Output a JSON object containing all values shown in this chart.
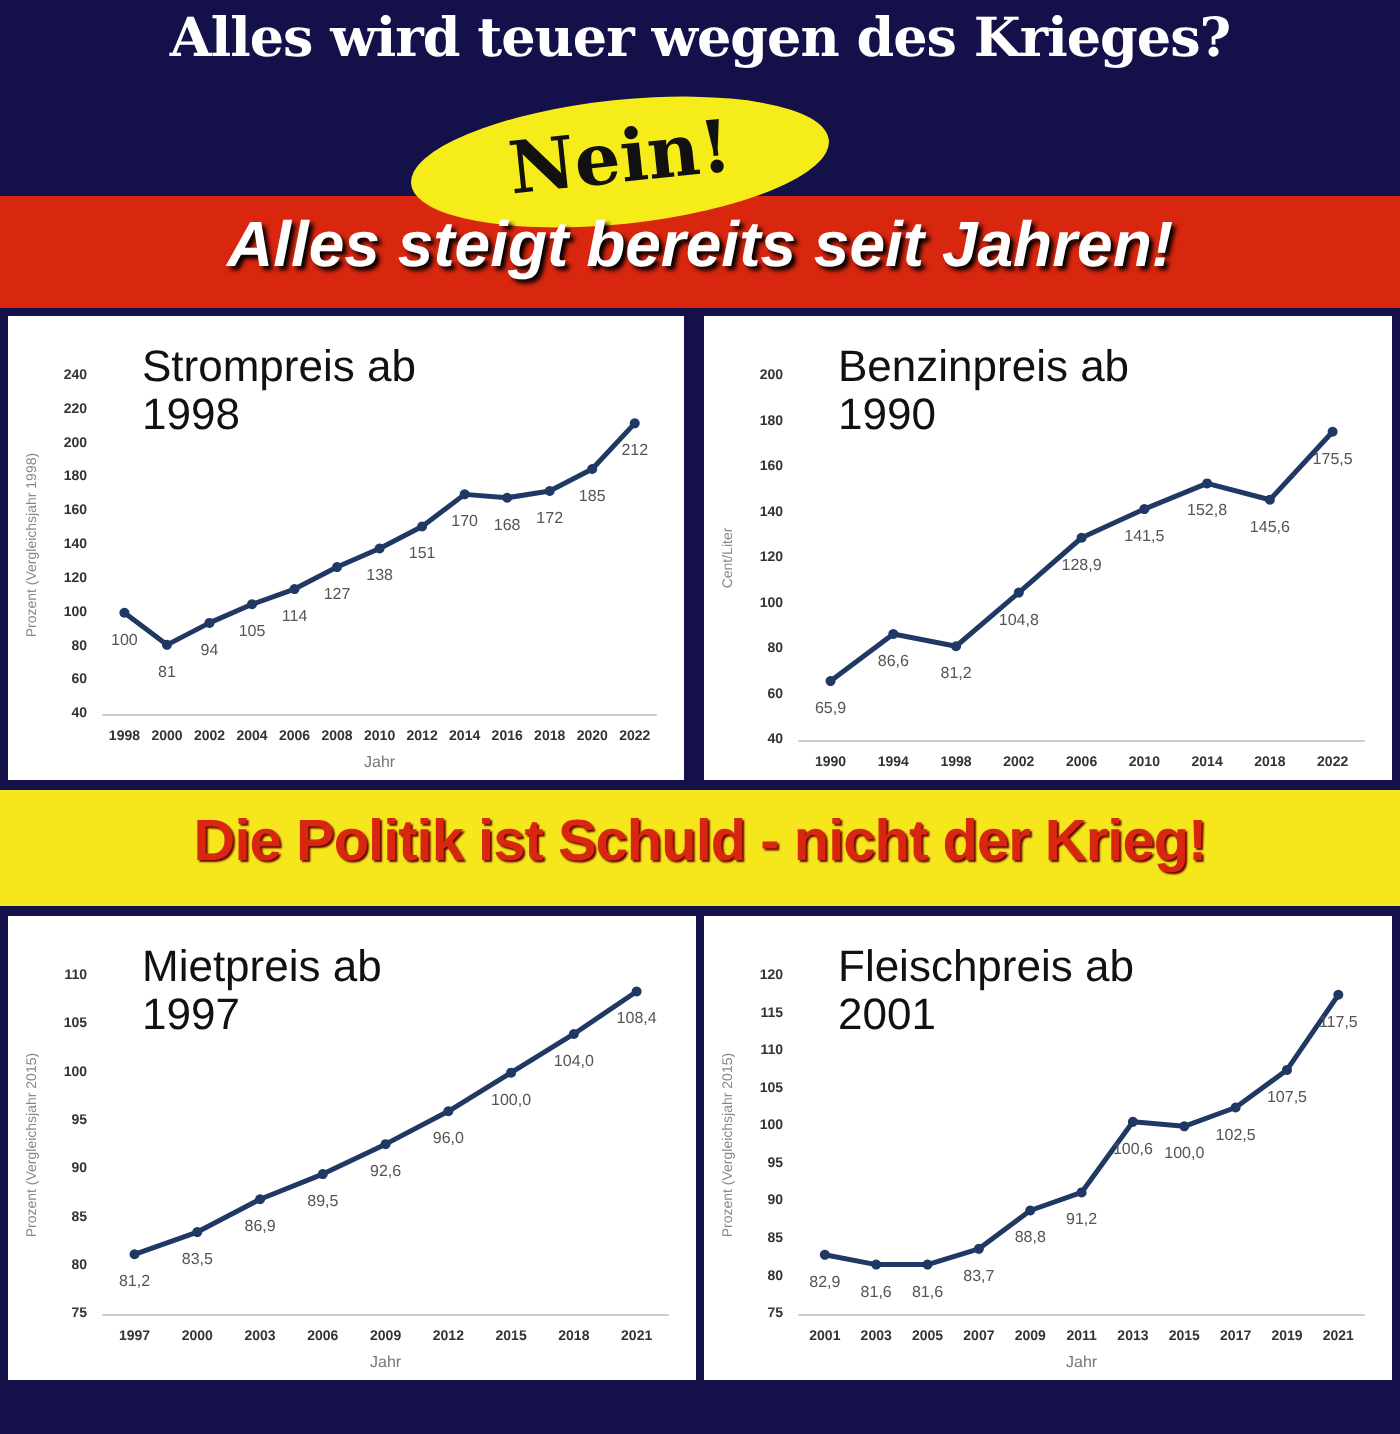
{
  "chart_data": [
    {
      "type": "line",
      "title": "Strompreis ab 1998",
      "xlabel": "Jahr",
      "ylabel": "Prozent (Vergleichsjahr 1998)",
      "annotations": [
        "Alles wird teuer wegen des Krieges?",
        "Nein!",
        "Alles steigt bereits seit Jahren!",
        "Die Politik ist Schuld - nicht der Krieg!"
      ],
      "categories": [
        "1998",
        "2000",
        "2002",
        "2004",
        "2006",
        "2008",
        "2010",
        "2012",
        "2014",
        "2016",
        "2018",
        "2020",
        "2022"
      ],
      "ylim": [
        40,
        240
      ],
      "yticks": [
        40,
        60,
        80,
        100,
        120,
        140,
        160,
        180,
        200,
        220,
        240
      ],
      "grid": false,
      "marker": "circle",
      "line_style": "solid",
      "series": [
        {
          "color": "#1f3864",
          "values": [
            100,
            81,
            94,
            105,
            114,
            127,
            138,
            151,
            170,
            168,
            172,
            185,
            212
          ],
          "value_labels": [
            "100",
            "81",
            "94",
            "105",
            "114",
            "127",
            "138",
            "151",
            "170",
            "168",
            "172",
            "185",
            "212"
          ]
        }
      ]
    },
    {
      "type": "line",
      "title": "Benzinpreis ab 1990",
      "ylabel": "Cent/Liter",
      "categories": [
        "1990",
        "1994",
        "1998",
        "2002",
        "2006",
        "2010",
        "2014",
        "2018",
        "2022"
      ],
      "ylim": [
        40,
        200
      ],
      "yticks": [
        40,
        60,
        80,
        100,
        120,
        140,
        160,
        180,
        200
      ],
      "grid": false,
      "marker": "circle",
      "line_style": "solid",
      "series": [
        {
          "color": "#1f3864",
          "values": [
            65.9,
            86.6,
            81.2,
            104.8,
            128.9,
            141.5,
            152.8,
            145.6,
            175.5
          ],
          "value_labels": [
            "65,9",
            "86,6",
            "81,2",
            "104,8",
            "128,9",
            "141,5",
            "152,8",
            "145,6",
            "175,5"
          ]
        }
      ]
    },
    {
      "type": "line",
      "title": "Mietpreis ab 1997",
      "xlabel": "Jahr",
      "ylabel": "Prozent (Vergleichsjahr 2015)",
      "categories": [
        "1997",
        "2000",
        "2003",
        "2006",
        "2009",
        "2012",
        "2015",
        "2018",
        "2021"
      ],
      "ylim": [
        75,
        110
      ],
      "yticks": [
        75,
        80,
        85,
        90,
        95,
        100,
        105,
        110
      ],
      "grid": false,
      "marker": "circle",
      "line_style": "solid",
      "series": [
        {
          "color": "#1f3864",
          "values": [
            81.2,
            83.5,
            86.9,
            89.5,
            92.6,
            96.0,
            100.0,
            104.0,
            108.4
          ],
          "value_labels": [
            "81,2",
            "83,5",
            "86,9",
            "89,5",
            "92,6",
            "96,0",
            "100,0",
            "104,0",
            "108,4"
          ]
        }
      ]
    },
    {
      "type": "line",
      "title": "Fleischpreis ab 2001",
      "xlabel": "Jahr",
      "ylabel": "Prozent (Vergleichsjahr 2015)",
      "categories": [
        "2001",
        "2003",
        "2005",
        "2007",
        "2009",
        "2011",
        "2013",
        "2015",
        "2017",
        "2019",
        "2021"
      ],
      "ylim": [
        75,
        120
      ],
      "yticks": [
        75,
        80,
        85,
        90,
        95,
        100,
        105,
        110,
        115,
        120
      ],
      "grid": false,
      "marker": "circle",
      "line_style": "solid",
      "series": [
        {
          "color": "#1f3864",
          "values": [
            82.9,
            81.6,
            81.6,
            83.7,
            88.8,
            91.2,
            100.6,
            100.0,
            102.5,
            107.5,
            117.5
          ],
          "value_labels": [
            "82,9",
            "81,6",
            "81,6",
            "83,7",
            "88,8",
            "91,2",
            "100,6",
            "100,0",
            "102,5",
            "107,5",
            "117,5"
          ]
        }
      ]
    }
  ]
}
